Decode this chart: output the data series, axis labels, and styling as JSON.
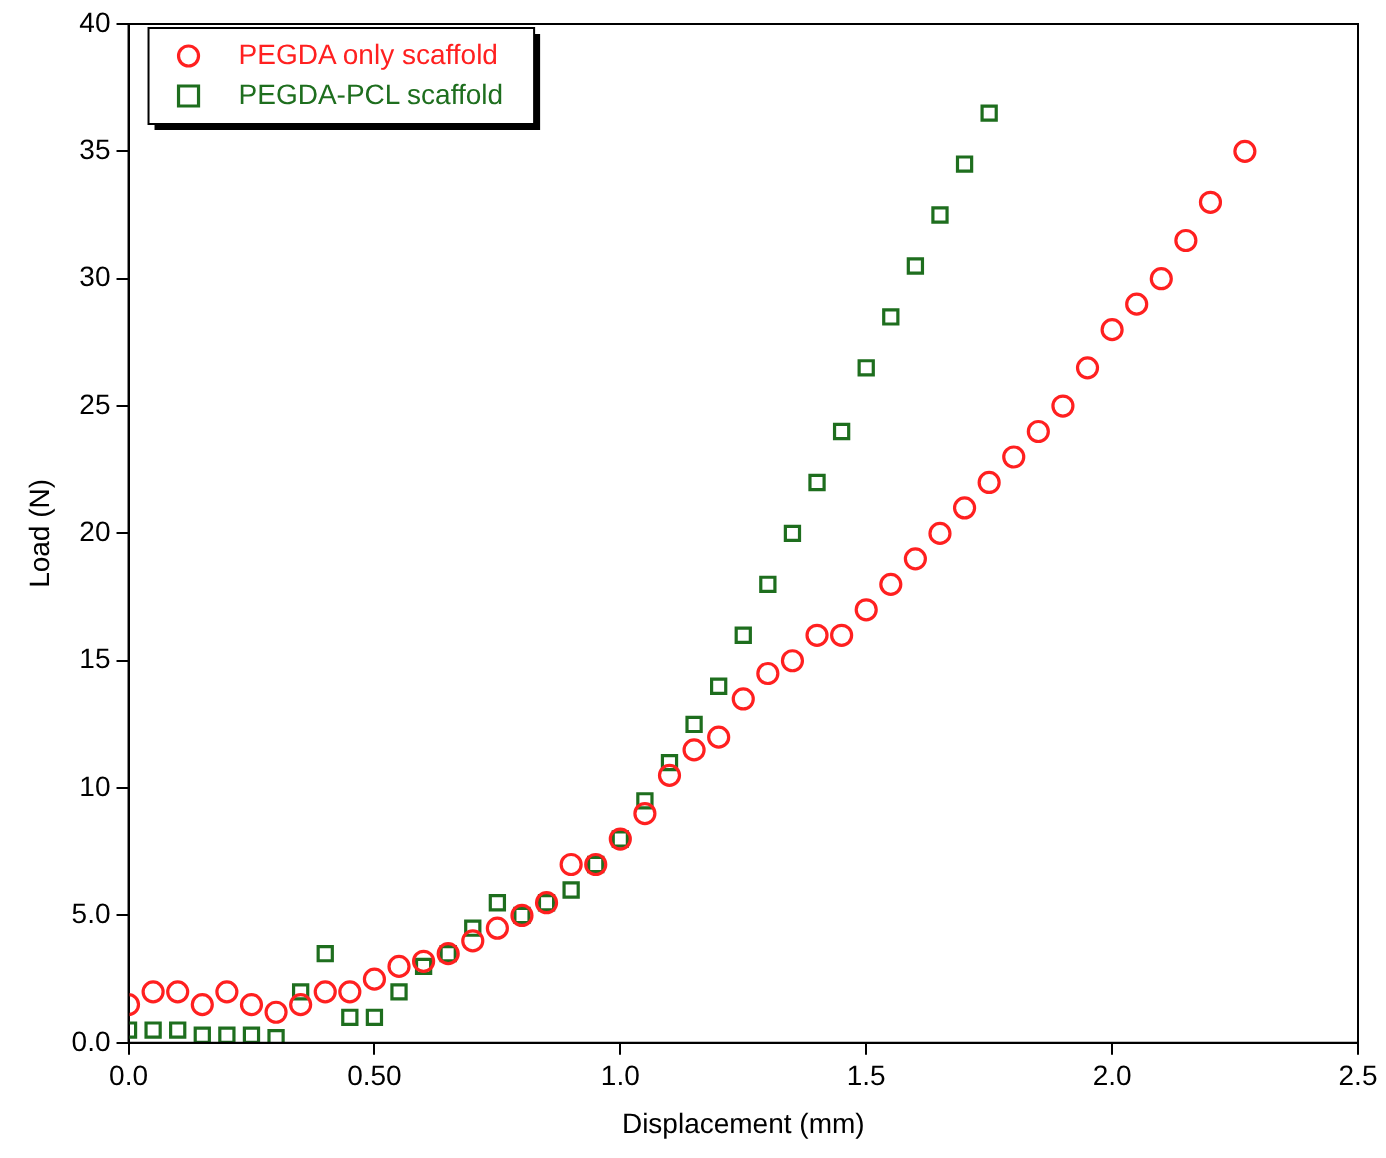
{
  "chart_data": {
    "type": "scatter",
    "xlabel": "Displacement (mm)",
    "ylabel": "Load (N)",
    "xlim": [
      0,
      2.5
    ],
    "xticks": [
      {
        "value": 0,
        "label": "0.0"
      },
      {
        "value": 0.5,
        "label": "0.50"
      },
      {
        "value": 1,
        "label": "1.0"
      },
      {
        "value": 1.5,
        "label": "1.5"
      },
      {
        "value": 2,
        "label": "2.0"
      },
      {
        "value": 2.5,
        "label": "2.5"
      }
    ],
    "ylim": [
      0,
      40
    ],
    "yticks": [
      {
        "value": 0,
        "label": "0.0"
      },
      {
        "value": 5,
        "label": "5.0"
      },
      10,
      15,
      20,
      25,
      30,
      35,
      40
    ],
    "legend": "top left",
    "series": [
      {
        "name": "PEGDA only scaffold",
        "color": "#ff2020",
        "marker": "circle",
        "x": [
          0,
          0.05,
          0.1,
          0.15,
          0.2,
          0.25,
          0.3,
          0.35,
          0.4,
          0.45,
          0.5,
          0.55,
          0.6,
          0.65,
          0.7,
          0.75,
          0.8,
          0.85,
          0.9,
          0.95,
          1.0,
          1.05,
          1.1,
          1.15,
          1.2,
          1.25,
          1.3,
          1.35,
          1.4,
          1.45,
          1.5,
          1.55,
          1.6,
          1.65,
          1.7,
          1.75,
          1.8,
          1.85,
          1.9,
          1.95,
          2.0,
          2.05,
          2.1,
          2.15,
          2.2,
          2.27
        ],
        "values": [
          1.5,
          2,
          2,
          1.5,
          2,
          1.5,
          1.2,
          1.5,
          2,
          2,
          2.5,
          3,
          3.2,
          3.5,
          4,
          4.5,
          5,
          5.5,
          7,
          7,
          8,
          9,
          10.5,
          11.5,
          12,
          13.5,
          14.5,
          15,
          16,
          16,
          17,
          18,
          19,
          20,
          21,
          22,
          23,
          24,
          25,
          26.5,
          28,
          29,
          30,
          31.5,
          33,
          35
        ]
      },
      {
        "name": "PEGDA-PCL scaffold",
        "color": "#1e6e1e",
        "marker": "square",
        "x": [
          0,
          0.05,
          0.1,
          0.15,
          0.2,
          0.25,
          0.3,
          0.35,
          0.4,
          0.45,
          0.5,
          0.55,
          0.6,
          0.65,
          0.7,
          0.75,
          0.8,
          0.85,
          0.9,
          0.95,
          1.0,
          1.05,
          1.1,
          1.15,
          1.2,
          1.25,
          1.3,
          1.35,
          1.4,
          1.45,
          1.5,
          1.55,
          1.6,
          1.65,
          1.7,
          1.75
        ],
        "values": [
          0.5,
          0.5,
          0.5,
          0.3,
          0.3,
          0.3,
          0.2,
          2,
          3.5,
          1,
          1,
          2,
          3,
          3.5,
          4.5,
          5.5,
          5,
          5.5,
          6,
          7,
          8,
          9.5,
          11,
          12.5,
          14,
          16,
          18,
          20,
          22,
          24,
          26.5,
          28.5,
          30.5,
          32.5,
          34.5,
          36.5
        ]
      }
    ]
  }
}
